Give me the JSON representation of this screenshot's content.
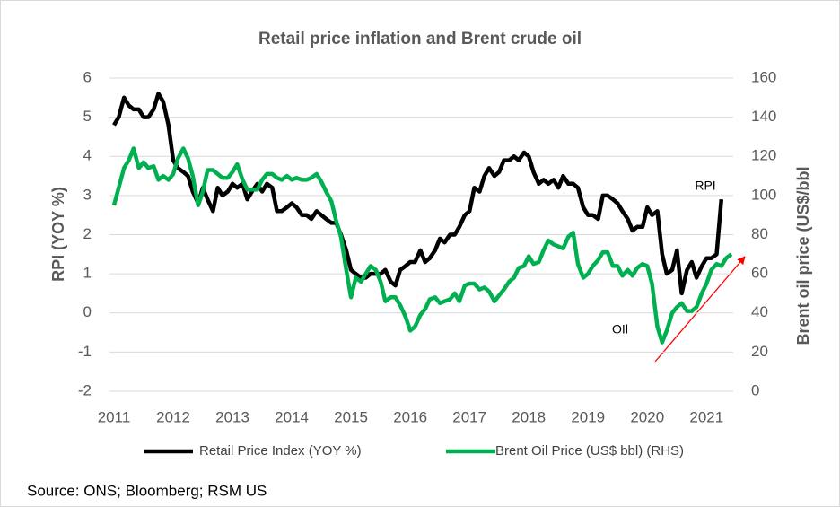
{
  "chart_data": {
    "type": "line",
    "title": "Retail price inflation and Brent crude oil",
    "y_label": "RPI (YOY %)",
    "y2_label": "Brent oil price (US$/bbl",
    "source": "Source: ONS; Bloomberg; RSM US",
    "annotations": [
      "RPI",
      "OIl"
    ],
    "xlim": [
      2011,
      2021.45
    ],
    "xticks": [
      2011,
      2012,
      2013,
      2014,
      2015,
      2016,
      2017,
      2018,
      2019,
      2020,
      2021
    ],
    "ylim": [
      -2,
      6
    ],
    "yticks": [
      -2,
      -1,
      0,
      1,
      2,
      3,
      4,
      5,
      6
    ],
    "y2lim": [
      0,
      160
    ],
    "y2ticks": [
      0,
      20,
      40,
      60,
      80,
      100,
      120,
      140,
      160
    ],
    "grid": true,
    "legend": "bottom",
    "x": [
      2011.0,
      2011.08,
      2011.17,
      2011.25,
      2011.33,
      2011.42,
      2011.5,
      2011.58,
      2011.67,
      2011.75,
      2011.83,
      2011.92,
      2012.0,
      2012.08,
      2012.17,
      2012.25,
      2012.33,
      2012.42,
      2012.5,
      2012.58,
      2012.67,
      2012.75,
      2012.83,
      2012.92,
      2013.0,
      2013.08,
      2013.17,
      2013.25,
      2013.33,
      2013.42,
      2013.5,
      2013.58,
      2013.67,
      2013.75,
      2013.83,
      2013.92,
      2014.0,
      2014.08,
      2014.17,
      2014.25,
      2014.33,
      2014.42,
      2014.5,
      2014.58,
      2014.67,
      2014.75,
      2014.83,
      2014.92,
      2015.0,
      2015.08,
      2015.17,
      2015.25,
      2015.33,
      2015.42,
      2015.5,
      2015.58,
      2015.67,
      2015.75,
      2015.83,
      2015.92,
      2016.0,
      2016.08,
      2016.17,
      2016.25,
      2016.33,
      2016.42,
      2016.5,
      2016.58,
      2016.67,
      2016.75,
      2016.83,
      2016.92,
      2017.0,
      2017.08,
      2017.17,
      2017.25,
      2017.33,
      2017.42,
      2017.5,
      2017.58,
      2017.67,
      2017.75,
      2017.83,
      2017.92,
      2018.0,
      2018.08,
      2018.17,
      2018.25,
      2018.33,
      2018.42,
      2018.5,
      2018.58,
      2018.67,
      2018.75,
      2018.83,
      2018.92,
      2019.0,
      2019.08,
      2019.17,
      2019.25,
      2019.33,
      2019.42,
      2019.5,
      2019.58,
      2019.67,
      2019.75,
      2019.83,
      2019.92,
      2020.0,
      2020.08,
      2020.17,
      2020.25,
      2020.33,
      2020.42,
      2020.5,
      2020.58,
      2020.67,
      2020.75,
      2020.83,
      2020.92,
      2021.0,
      2021.08,
      2021.17,
      2021.25,
      2021.33,
      2021.42
    ],
    "series": [
      {
        "name": "Retail Price Index (YOY %)",
        "color": "#000000",
        "axis": "y",
        "values": [
          4.8,
          5.0,
          5.5,
          5.3,
          5.2,
          5.2,
          5.0,
          5.0,
          5.2,
          5.6,
          5.4,
          4.8,
          3.9,
          3.7,
          3.6,
          3.5,
          3.1,
          2.8,
          3.2,
          2.9,
          2.6,
          3.2,
          3.0,
          3.1,
          3.3,
          3.2,
          3.3,
          2.9,
          3.1,
          3.3,
          3.1,
          3.3,
          3.2,
          2.6,
          2.6,
          2.7,
          2.8,
          2.7,
          2.5,
          2.5,
          2.4,
          2.6,
          2.5,
          2.4,
          2.3,
          2.3,
          2.0,
          1.6,
          1.1,
          1.0,
          0.9,
          0.9,
          1.0,
          1.0,
          1.0,
          1.1,
          0.8,
          0.7,
          1.1,
          1.2,
          1.3,
          1.3,
          1.6,
          1.3,
          1.4,
          1.6,
          1.9,
          1.8,
          2.0,
          2.0,
          2.2,
          2.5,
          2.6,
          3.2,
          3.1,
          3.5,
          3.7,
          3.5,
          3.6,
          3.9,
          3.9,
          4.0,
          3.9,
          4.1,
          4.0,
          3.6,
          3.3,
          3.4,
          3.3,
          3.4,
          3.2,
          3.5,
          3.3,
          3.3,
          3.2,
          2.7,
          2.5,
          2.5,
          2.4,
          3.0,
          3.0,
          2.9,
          2.8,
          2.6,
          2.4,
          2.1,
          2.2,
          2.2,
          2.7,
          2.5,
          2.6,
          1.5,
          1.0,
          1.1,
          1.6,
          0.5,
          1.1,
          1.3,
          0.9,
          1.2,
          1.4,
          1.4,
          1.5,
          2.9,
          null,
          null
        ]
      },
      {
        "name": "Brent Oil Price (US$ bbl) (RHS)",
        "color": "#00b050",
        "axis": "y2",
        "values": [
          95,
          104,
          114,
          118,
          124,
          114,
          117,
          114,
          115,
          108,
          110,
          108,
          111,
          119,
          124,
          119,
          110,
          95,
          102,
          113,
          113,
          111,
          109,
          109,
          112,
          116,
          108,
          103,
          103,
          103,
          108,
          111,
          111,
          109,
          108,
          110,
          108,
          109,
          108,
          108,
          109,
          111,
          107,
          102,
          97,
          87,
          79,
          62,
          48,
          58,
          56,
          60,
          64,
          62,
          56,
          46,
          48,
          48,
          44,
          38,
          31,
          33,
          39,
          42,
          47,
          48,
          45,
          46,
          47,
          50,
          46,
          54,
          55,
          55,
          52,
          53,
          51,
          46,
          49,
          52,
          56,
          58,
          63,
          64,
          69,
          65,
          66,
          72,
          77,
          75,
          74,
          73,
          79,
          81,
          65,
          58,
          60,
          64,
          67,
          71,
          71,
          64,
          64,
          59,
          62,
          59,
          63,
          65,
          64,
          55,
          33,
          25,
          31,
          40,
          43,
          45,
          41,
          41,
          43,
          50,
          55,
          62,
          65,
          64,
          68,
          70
        ]
      }
    ]
  }
}
